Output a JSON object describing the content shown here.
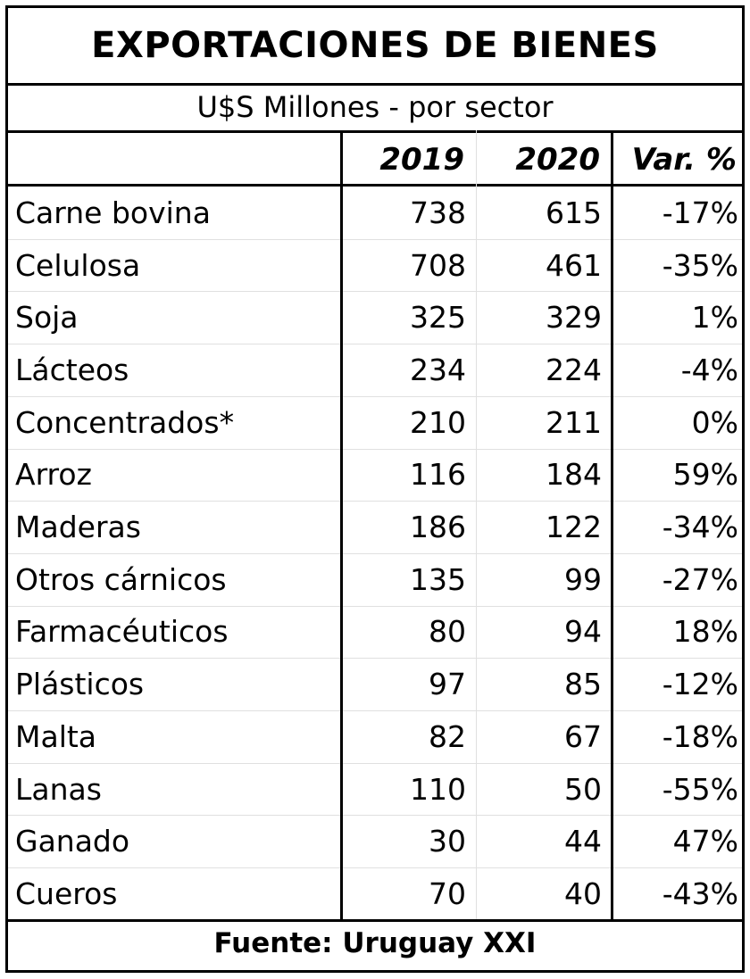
{
  "chart_data": {
    "type": "table",
    "title": "EXPORTACIONES DE BIENES",
    "subtitle": "U$S Millones - por sector",
    "columns": [
      "",
      "2019",
      "2020",
      "Var. %"
    ],
    "rows": [
      {
        "sector": "Carne bovina",
        "y2019": "738",
        "y2020": "615",
        "var": "-17%"
      },
      {
        "sector": "Celulosa",
        "y2019": "708",
        "y2020": "461",
        "var": "-35%"
      },
      {
        "sector": "Soja",
        "y2019": "325",
        "y2020": "329",
        "var": "1%"
      },
      {
        "sector": "Lácteos",
        "y2019": "234",
        "y2020": "224",
        "var": "-4%"
      },
      {
        "sector": "Concentrados*",
        "y2019": "210",
        "y2020": "211",
        "var": "0%"
      },
      {
        "sector": "Arroz",
        "y2019": "116",
        "y2020": "184",
        "var": "59%"
      },
      {
        "sector": "Maderas",
        "y2019": "186",
        "y2020": "122",
        "var": "-34%"
      },
      {
        "sector": "Otros cárnicos",
        "y2019": "135",
        "y2020": "99",
        "var": "-27%"
      },
      {
        "sector": "Farmacéuticos",
        "y2019": "80",
        "y2020": "94",
        "var": "18%"
      },
      {
        "sector": "Plásticos",
        "y2019": "97",
        "y2020": "85",
        "var": "-12%"
      },
      {
        "sector": "Malta",
        "y2019": "82",
        "y2020": "67",
        "var": "-18%"
      },
      {
        "sector": "Lanas",
        "y2019": "110",
        "y2020": "50",
        "var": "-55%"
      },
      {
        "sector": "Ganado",
        "y2019": "30",
        "y2020": "44",
        "var": "47%"
      },
      {
        "sector": "Cueros",
        "y2019": "70",
        "y2020": "40",
        "var": "-43%"
      }
    ],
    "footer": "Fuente: Uruguay XXI"
  }
}
